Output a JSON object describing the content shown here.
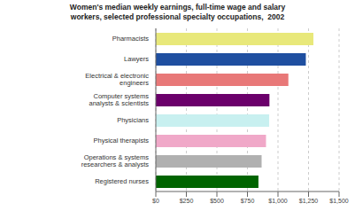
{
  "chart_data": {
    "type": "bar",
    "title": "Women's median weekly earnings, full-time wage and salary\nworkers, selected professional specialty occupations,  2002",
    "orientation": "horizontal",
    "categories": [
      "Pharmacists",
      "Lawyers",
      "Electrical & electronic engineers",
      "Computer systems analysts & scientists",
      "Physicians",
      "Physical therapists",
      "Operations & systems researchers & analysts",
      "Registered nurses"
    ],
    "values": [
      1290,
      1228,
      1085,
      930,
      928,
      902,
      866,
      840
    ],
    "colors": [
      "#e8e87a",
      "#1f4fa0",
      "#e87878",
      "#6b006b",
      "#c8f0f0",
      "#f0a8c8",
      "#b0b0b0",
      "#006400"
    ],
    "xlim": [
      0,
      1500
    ],
    "xticks": [
      {
        "value": 0,
        "label": "$0"
      },
      {
        "value": 250,
        "label": "$250"
      },
      {
        "value": 500,
        "label": "$500"
      },
      {
        "value": 750,
        "label": "$750"
      },
      {
        "value": 1000,
        "label": "$1,000"
      },
      {
        "value": 1250,
        "label": "$1,250"
      },
      {
        "value": 1500,
        "label": "$1,500"
      }
    ],
    "grid": true
  }
}
